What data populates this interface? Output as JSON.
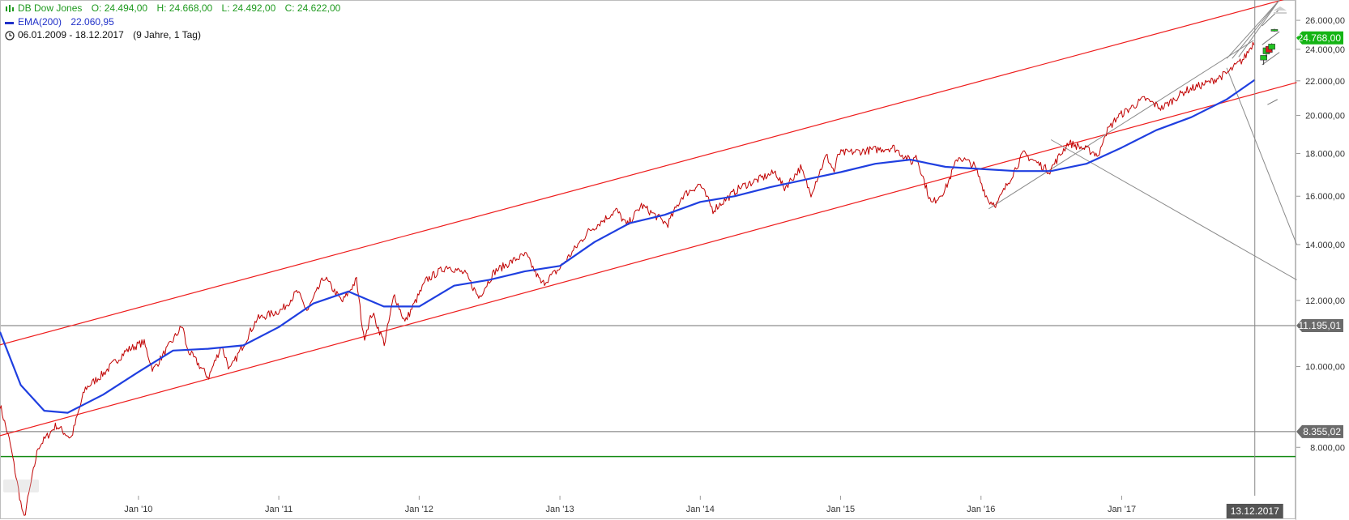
{
  "header": {
    "instrument": "DB Dow Jones",
    "ohlc": {
      "open": "O: 24.494,00",
      "high": "H: 24.668,00",
      "low": "L: 24.492,00",
      "close": "C: 24.622,00"
    },
    "indicator": "EMA(200)",
    "indicator_value": "22.060,95",
    "range": "06.01.2009 - 18.12.2017",
    "period": "(9 Jahre, 1 Tag)"
  },
  "colors": {
    "price": "#c00000",
    "ema": "#1f3fe0",
    "channel": "#ee1c1c",
    "trend": "#8a8a8a",
    "support_green": "#128a12",
    "hline": "#707070",
    "badge_grey": "#6b6b6b",
    "badge_green": "#14b414",
    "crosshair_badge": "#555555"
  },
  "chart_data": {
    "type": "line",
    "y_scale": "log",
    "ylim": [
      7000,
      27500
    ],
    "x_range": [
      "2009-01-06",
      "2018-03-31"
    ],
    "x_ticks": [
      {
        "date": "2010-01-01",
        "label": "Jan '10"
      },
      {
        "date": "2011-01-01",
        "label": "Jan '11"
      },
      {
        "date": "2012-01-01",
        "label": "Jan '12"
      },
      {
        "date": "2013-01-01",
        "label": "Jan '13"
      },
      {
        "date": "2014-01-01",
        "label": "Jan '14"
      },
      {
        "date": "2015-01-01",
        "label": "Jan '15"
      },
      {
        "date": "2016-01-01",
        "label": "Jan '16"
      },
      {
        "date": "2017-01-01",
        "label": "Jan '17"
      }
    ],
    "y_ticks": [
      {
        "value": 8000,
        "label": "8.000,00"
      },
      {
        "value": 10000,
        "label": "10.000,00"
      },
      {
        "value": 12000,
        "label": "12.000,00"
      },
      {
        "value": 14000,
        "label": "14.000,00"
      },
      {
        "value": 16000,
        "label": "16.000,00"
      },
      {
        "value": 18000,
        "label": "18.000,00"
      },
      {
        "value": 20000,
        "label": "20.000,00"
      },
      {
        "value": 22000,
        "label": "22.000,00"
      },
      {
        "value": 24000,
        "label": "24.000,00"
      },
      {
        "value": 26000,
        "label": "26.000,00"
      }
    ],
    "series": [
      {
        "name": "DB Dow Jones",
        "x": [
          "2009-01-06",
          "2009-02-01",
          "2009-03-09",
          "2009-04-15",
          "2009-06-01",
          "2009-07-10",
          "2009-08-15",
          "2009-10-01",
          "2009-12-01",
          "2010-01-15",
          "2010-02-08",
          "2010-04-26",
          "2010-05-07",
          "2010-07-02",
          "2010-08-05",
          "2010-08-27",
          "2010-11-05",
          "2011-01-10",
          "2011-02-18",
          "2011-03-16",
          "2011-04-29",
          "2011-06-15",
          "2011-07-22",
          "2011-08-10",
          "2011-09-01",
          "2011-10-03",
          "2011-10-28",
          "2011-11-25",
          "2012-01-20",
          "2012-03-15",
          "2012-05-01",
          "2012-06-04",
          "2012-07-15",
          "2012-09-15",
          "2012-10-05",
          "2012-11-15",
          "2012-12-31",
          "2013-03-15",
          "2013-05-28",
          "2013-06-24",
          "2013-08-01",
          "2013-10-08",
          "2013-11-15",
          "2013-12-31",
          "2014-02-03",
          "2014-04-15",
          "2014-07-16",
          "2014-08-07",
          "2014-09-19",
          "2014-10-15",
          "2014-11-25",
          "2014-12-16",
          "2014-12-26",
          "2015-02-15",
          "2015-05-19",
          "2015-07-07",
          "2015-07-15",
          "2015-08-25",
          "2015-09-30",
          "2015-11-03",
          "2015-12-15",
          "2016-01-20",
          "2016-02-11",
          "2016-04-20",
          "2016-06-27",
          "2016-08-15",
          "2016-10-15",
          "2016-11-04",
          "2016-11-15",
          "2016-12-20",
          "2017-03-01",
          "2017-04-15",
          "2017-06-15",
          "2017-08-15",
          "2017-10-01",
          "2017-11-15",
          "2017-12-13"
        ],
        "values": [
          9000,
          8100,
          6550,
          8000,
          8500,
          8200,
          9400,
          9800,
          10450,
          10700,
          9900,
          11200,
          10500,
          9700,
          10600,
          9900,
          11400,
          11700,
          12300,
          11650,
          12800,
          11950,
          12700,
          10800,
          11600,
          10650,
          12200,
          11300,
          12700,
          13200,
          12900,
          12100,
          13000,
          13500,
          13600,
          12550,
          13100,
          14500,
          15400,
          14750,
          15600,
          14800,
          16000,
          16550,
          15400,
          16400,
          17100,
          16350,
          17300,
          16100,
          17900,
          17100,
          18000,
          18100,
          18300,
          17550,
          18000,
          15650,
          16300,
          17850,
          17400,
          15800,
          15650,
          18000,
          17150,
          18550,
          18100,
          17900,
          18900,
          19900,
          20950,
          20400,
          21400,
          21900,
          22450,
          23400,
          24600
        ]
      },
      {
        "name": "EMA(200)",
        "x": [
          "2009-01-06",
          "2009-03-01",
          "2009-05-01",
          "2009-07-01",
          "2009-10-01",
          "2010-01-01",
          "2010-04-01",
          "2010-07-01",
          "2010-10-01",
          "2011-01-01",
          "2011-04-01",
          "2011-07-01",
          "2011-10-01",
          "2012-01-01",
          "2012-04-01",
          "2012-07-01",
          "2012-10-01",
          "2013-01-01",
          "2013-04-01",
          "2013-07-01",
          "2013-10-01",
          "2014-01-01",
          "2014-04-01",
          "2014-07-01",
          "2014-10-01",
          "2015-01-01",
          "2015-04-01",
          "2015-07-01",
          "2015-10-01",
          "2016-01-01",
          "2016-04-01",
          "2016-07-01",
          "2016-10-01",
          "2017-01-01",
          "2017-04-01",
          "2017-07-01",
          "2017-10-01",
          "2017-12-13"
        ],
        "values": [
          11000,
          9500,
          8850,
          8800,
          9250,
          9850,
          10450,
          10500,
          10600,
          11150,
          11900,
          12300,
          11800,
          11800,
          12500,
          12700,
          13000,
          13200,
          14100,
          14850,
          15200,
          15750,
          16000,
          16400,
          16750,
          17100,
          17500,
          17700,
          17350,
          17250,
          17150,
          17150,
          17500,
          18300,
          19200,
          19900,
          20900,
          22060
        ]
      }
    ],
    "horizontal_lines": [
      {
        "label": "11.195,01",
        "value": 11195.01
      },
      {
        "label": "8.355,02",
        "value": 8355.02
      },
      {
        "label": "",
        "value": 7800
      }
    ],
    "last_price_badge": {
      "label": "24.768,00",
      "value": 24768
    },
    "crosshair": {
      "label": "13.12.2017",
      "date": "2017-12-13"
    },
    "channel": {
      "upper": {
        "from": [
          "2009-01-01",
          10600
        ],
        "to": [
          "2018-04-01",
          27800
        ]
      },
      "lower": {
        "from": [
          "2009-01-01",
          8250
        ],
        "to": [
          "2018-04-01",
          21900
        ]
      }
    },
    "trendlines": [
      {
        "from": [
          "2016-01-21",
          15450
        ],
        "to": [
          "2017-12-10",
          24600
        ]
      },
      {
        "from": [
          "2016-07-01",
          18700
        ],
        "to": [
          "2018-04-01",
          12700
        ]
      },
      {
        "from": [
          "2017-10-01",
          22800
        ],
        "to": [
          "2018-04-01",
          14000
        ]
      },
      {
        "from": [
          "2017-10-01",
          23400
        ],
        "to": [
          "2018-02-15",
          27500
        ]
      },
      {
        "from": [
          "2017-10-15",
          23400
        ],
        "to": [
          "2018-02-15",
          27500
        ]
      },
      {
        "from": [
          "2017-11-01",
          23500
        ],
        "to": [
          "2018-02-15",
          27500
        ]
      }
    ],
    "forecast_lines": [
      {
        "from": [
          "2018-01-01",
          23000
        ],
        "to": [
          "2018-02-15",
          23800
        ]
      },
      {
        "from": [
          "2018-01-01",
          24300
        ],
        "to": [
          "2018-02-15",
          25200
        ]
      },
      {
        "from": [
          "2018-01-01",
          25600
        ],
        "to": [
          "2018-02-15",
          26800
        ]
      },
      {
        "from": [
          "2018-01-15",
          20600
        ],
        "to": [
          "2018-02-10",
          20900
        ]
      }
    ],
    "future_candles": [
      {
        "date": "2018-01-05",
        "open": 23300,
        "high": 23600,
        "low": 23000,
        "close": 23600
      },
      {
        "date": "2018-01-12",
        "open": 23700,
        "high": 24200,
        "low": 23500,
        "close": 24100
      },
      {
        "date": "2018-01-19",
        "open": 24200,
        "high": 24300,
        "low": 23700,
        "close": 23800
      },
      {
        "date": "2018-01-26",
        "open": 24000,
        "high": 24400,
        "low": 23900,
        "close": 24350
      },
      {
        "date": "2018-02-02",
        "open": 25250,
        "high": 25400,
        "low": 25200,
        "close": 25350
      }
    ]
  }
}
